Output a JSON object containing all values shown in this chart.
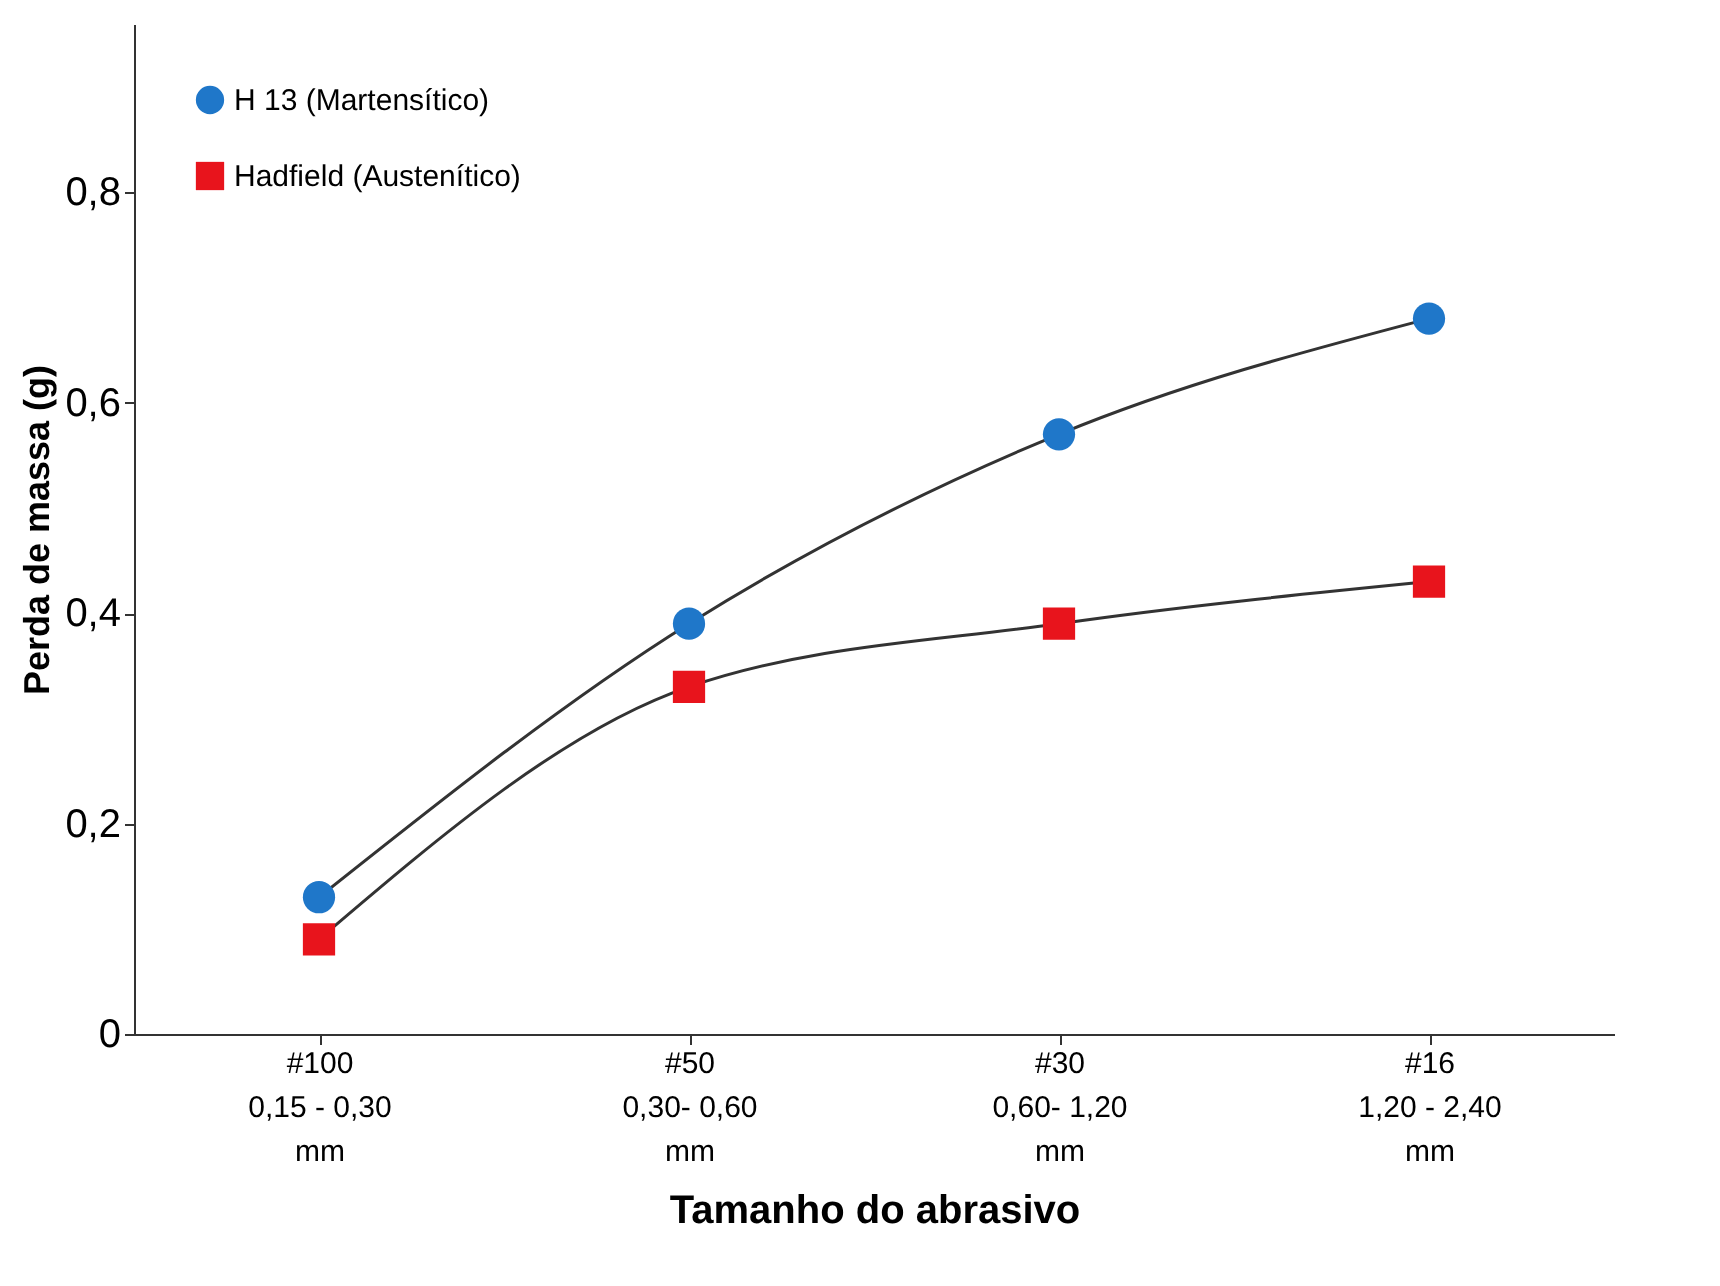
{
  "chart_data": {
    "type": "line",
    "xlabel": "Tamanho do abrasivo",
    "ylabel": "Perda de massa (g)",
    "categories": [
      "#100\n0,15 - 0,30\nmm",
      "#50\n0,30- 0,60\nmm",
      "#30\n0,60- 1,20\nmm",
      "#16\n1,20 - 2,40\nmm"
    ],
    "series": [
      {
        "name": "H 13 (Martensítico)",
        "color": "#1f77c9",
        "marker": "circle",
        "values": [
          0.13,
          0.39,
          0.57,
          0.68
        ]
      },
      {
        "name": "Hadfield (Austenítico)",
        "color": "#e8141c",
        "marker": "square",
        "values": [
          0.09,
          0.33,
          0.39,
          0.43
        ]
      }
    ],
    "ylim": [
      0,
      0.96
    ],
    "yticks": [
      0,
      {
        "value": 0.2,
        "label": "0,2"
      },
      {
        "value": 0.4,
        "label": "0,4"
      },
      {
        "value": 0.6,
        "label": "0,6"
      },
      {
        "value": 0.8,
        "label": "0,8"
      }
    ],
    "legend": "top left",
    "grid": false
  }
}
